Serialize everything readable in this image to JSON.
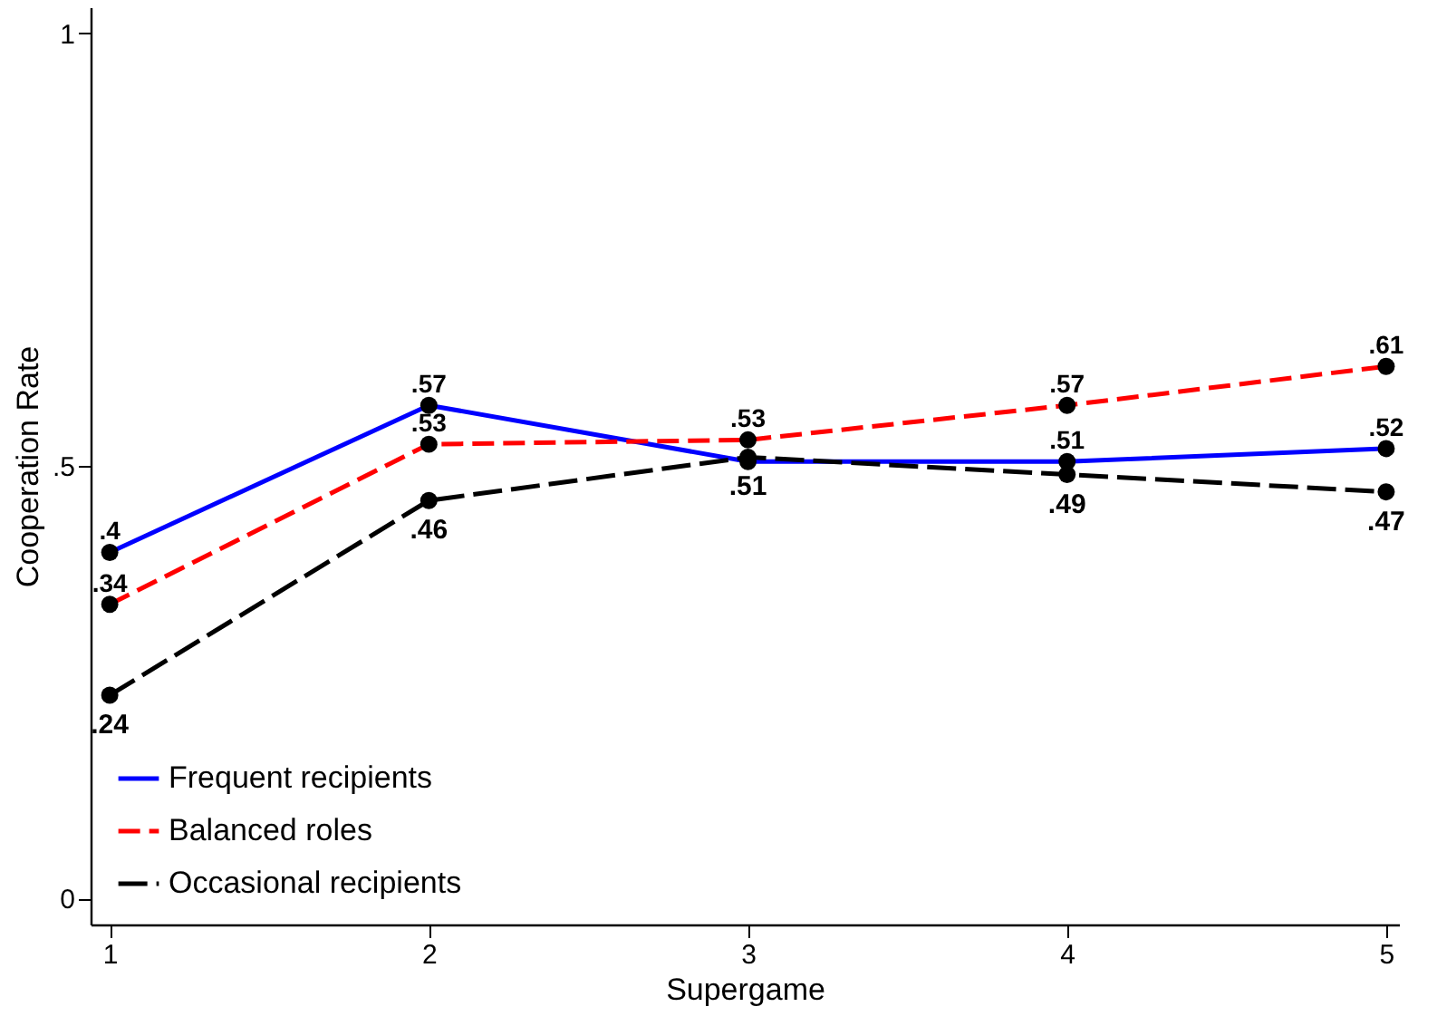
{
  "chart_data": {
    "type": "line",
    "xlabel": "Supergame",
    "ylabel": "Cooperation Rate",
    "x": [
      1,
      2,
      3,
      4,
      5
    ],
    "series": [
      {
        "name": "Frequent recipients",
        "color": "#0000ff",
        "line_style": "solid",
        "values": [
          0.4,
          0.57,
          0.505,
          0.505,
          0.52
        ],
        "value_labels": [
          ".4",
          ".57",
          null,
          ".51",
          ".52"
        ]
      },
      {
        "name": "Balanced roles",
        "color": "#ff0000",
        "line_style": "dashed",
        "values": [
          0.34,
          0.525,
          0.53,
          0.57,
          0.615
        ],
        "value_labels": [
          ".34",
          ".53",
          ".53",
          ".57",
          ".61"
        ]
      },
      {
        "name": "Occasional recipients",
        "color": "#000000",
        "line_style": "dashed",
        "values": [
          0.235,
          0.46,
          0.51,
          0.49,
          0.47
        ],
        "value_labels": [
          ".24",
          ".46",
          ".51",
          ".49",
          ".47"
        ]
      }
    ],
    "xlim": [
      0.94,
      5.04
    ],
    "ylim": [
      -0.03,
      1.03
    ],
    "xticks": [
      1,
      2,
      3,
      4,
      5
    ],
    "yticks": [
      0,
      {
        "value": 0.5,
        "label": ".5"
      },
      1
    ],
    "marker": "circle",
    "legend": "bottom left",
    "grid": false
  }
}
